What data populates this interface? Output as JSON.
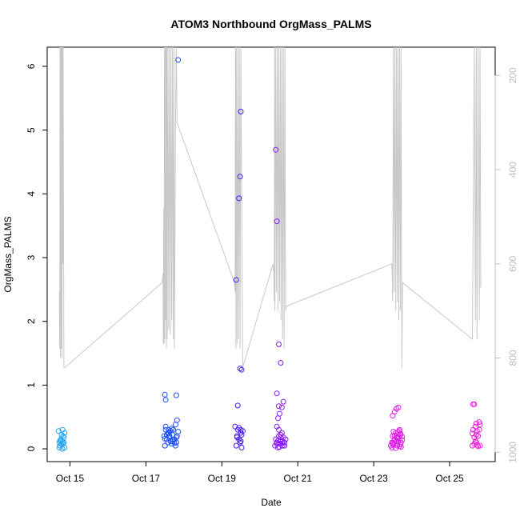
{
  "chart_data": {
    "type": "scatter",
    "title": "ATOM3 Northbound OrgMass_PALMS",
    "xlabel": "Date",
    "ylabel": "OrgMass_PALMS",
    "x_ticks": [
      "Oct 15",
      "Oct 17",
      "Oct 19",
      "Oct 21",
      "Oct 23",
      "Oct 25"
    ],
    "x_tick_day": [
      15,
      17,
      19,
      21,
      23,
      25
    ],
    "xlim_day": [
      14.4,
      26.2
    ],
    "ylim": [
      -0.2,
      6.3
    ],
    "y_ticks": [
      0,
      1,
      2,
      3,
      4,
      5,
      6
    ],
    "y2_ticks": [
      200,
      400,
      600,
      800,
      1000
    ],
    "y2lim": [
      1020,
      140
    ],
    "y2_reversed": true,
    "grid": false,
    "legend": "none",
    "colors": {
      "flight1": "#27a4ef",
      "flight2": "#1e50ff",
      "flight3": "#4a1fe6",
      "flight4": "#8a19ff",
      "flight5": "#e11ee6",
      "flight6": "#ea1fd9",
      "pressure": "#c8c8c8"
    },
    "series": [
      {
        "color_key": "flight1",
        "x": [
          14.7,
          14.72,
          14.74,
          14.76,
          14.78,
          14.8,
          14.82,
          14.84,
          14.86,
          14.72,
          14.76,
          14.8,
          14.84,
          14.78,
          14.82,
          14.74,
          14.86,
          14.8
        ],
        "y": [
          0.28,
          0.1,
          0.05,
          0.12,
          0.22,
          0.3,
          0.08,
          0.18,
          0.25,
          0.02,
          0.15,
          0.0,
          0.1,
          0.07,
          0.2,
          0.13,
          0.02,
          0.11
        ]
      },
      {
        "color_key": "flight2",
        "x": [
          17.48,
          17.5,
          17.52,
          17.55,
          17.58,
          17.6,
          17.62,
          17.65,
          17.68,
          17.7,
          17.72,
          17.75,
          17.78,
          17.8,
          17.82,
          17.5,
          17.55,
          17.6,
          17.65,
          17.7,
          17.75,
          17.8,
          17.52,
          17.58,
          17.62,
          17.68,
          17.72,
          17.78,
          17.82,
          17.85,
          17.5,
          17.52,
          17.8,
          17.85
        ],
        "y": [
          0.2,
          0.05,
          0.3,
          0.15,
          0.1,
          0.25,
          0.18,
          0.12,
          0.08,
          0.22,
          0.3,
          0.15,
          0.05,
          0.1,
          0.2,
          0.16,
          0.22,
          0.3,
          0.28,
          0.12,
          0.09,
          0.18,
          0.35,
          0.25,
          0.2,
          0.32,
          0.14,
          0.38,
          0.45,
          0.27,
          0.85,
          0.77,
          0.84,
          6.1
        ]
      },
      {
        "color_key": "flight3",
        "x": [
          19.35,
          19.38,
          19.4,
          19.42,
          19.45,
          19.48,
          19.5,
          19.52,
          19.55,
          19.4,
          19.45,
          19.5,
          19.42,
          19.48,
          19.52,
          19.38,
          19.45,
          19.48,
          19.5,
          19.52,
          19.5
        ],
        "y": [
          0.35,
          0.05,
          0.2,
          0.3,
          0.15,
          0.1,
          0.25,
          0.02,
          0.28,
          0.18,
          0.33,
          0.12,
          0.68,
          1.26,
          1.24,
          2.65,
          3.93,
          4.27,
          5.29,
          0.22,
          0.3
        ]
      },
      {
        "color_key": "flight4",
        "x": [
          20.4,
          20.42,
          20.45,
          20.48,
          20.5,
          20.52,
          20.55,
          20.58,
          20.6,
          20.62,
          20.65,
          20.68,
          20.5,
          20.55,
          20.6,
          20.45,
          20.48,
          20.52,
          20.58,
          20.62,
          20.65,
          20.42,
          20.45,
          20.5,
          20.55,
          20.45,
          20.45,
          20.48,
          20.5,
          20.55,
          20.6,
          20.52
        ],
        "y": [
          0.05,
          0.15,
          0.1,
          0.02,
          0.2,
          0.08,
          0.12,
          0.25,
          0.05,
          0.18,
          0.1,
          0.15,
          0.3,
          0.22,
          0.12,
          0.35,
          0.48,
          0.55,
          0.65,
          0.74,
          0.05,
          4.69,
          3.57,
          1.64,
          1.35,
          0.87,
          0.08,
          0.13,
          0.67,
          0.18,
          0.09,
          0.03
        ]
      },
      {
        "color_key": "flight5",
        "x": [
          23.45,
          23.48,
          23.5,
          23.52,
          23.55,
          23.58,
          23.6,
          23.62,
          23.65,
          23.68,
          23.7,
          23.72,
          23.75,
          23.5,
          23.55,
          23.6,
          23.65,
          23.7,
          23.48,
          23.52,
          23.58,
          23.62,
          23.68,
          23.72,
          23.5,
          23.55,
          23.6,
          23.65,
          23.7,
          23.75,
          23.52,
          23.58,
          23.62,
          23.68,
          23.55,
          23.65
        ],
        "y": [
          0.05,
          0.1,
          0.2,
          0.08,
          0.15,
          0.25,
          0.12,
          0.05,
          0.18,
          0.3,
          0.22,
          0.1,
          0.14,
          0.52,
          0.58,
          0.63,
          0.65,
          0.24,
          0.02,
          0.06,
          0.11,
          0.16,
          0.28,
          0.03,
          0.09,
          0.13,
          0.2,
          0.26,
          0.07,
          0.19,
          0.27,
          0.01,
          0.17,
          0.04,
          0.21,
          0.12
        ]
      },
      {
        "color_key": "flight6",
        "x": [
          25.6,
          25.62,
          25.65,
          25.68,
          25.7,
          25.72,
          25.75,
          25.78,
          25.8,
          25.62,
          25.65,
          25.68,
          25.7,
          25.72,
          25.75,
          25.78,
          25.65,
          25.7,
          25.6,
          25.8
        ],
        "y": [
          0.05,
          0.3,
          0.08,
          0.35,
          0.4,
          0.06,
          0.2,
          0.3,
          0.38,
          0.7,
          0.7,
          0.12,
          0.22,
          0.28,
          0.04,
          0.42,
          0.18,
          0.1,
          0.24,
          0.05
        ]
      }
    ],
    "pressure_line": {
      "x": [
        14.72,
        14.73,
        14.74,
        14.75,
        14.76,
        14.77,
        14.78,
        14.79,
        14.8,
        14.81,
        14.82,
        14.84,
        14.87,
        17.43,
        17.45,
        17.46,
        17.47,
        17.48,
        17.49,
        17.5,
        17.51,
        17.52,
        17.53,
        17.54,
        17.55,
        17.56,
        17.58,
        17.6,
        17.62,
        17.64,
        17.66,
        17.68,
        17.7,
        17.72,
        17.74,
        17.75,
        17.78,
        17.8,
        17.82,
        19.33,
        19.35,
        19.36,
        19.37,
        19.38,
        19.4,
        19.42,
        19.44,
        19.46,
        19.48,
        19.5,
        19.55,
        20.35,
        20.37,
        20.38,
        20.39,
        20.4,
        20.42,
        20.44,
        20.46,
        20.48,
        20.5,
        20.52,
        20.54,
        20.56,
        20.58,
        20.6,
        20.62,
        20.64,
        20.66,
        20.68,
        20.7,
        23.48,
        23.5,
        23.52,
        23.54,
        23.56,
        23.58,
        23.6,
        23.62,
        23.64,
        23.66,
        23.68,
        23.7,
        23.72,
        23.74,
        23.76,
        25.6,
        25.65,
        25.68,
        25.7,
        25.72,
        25.75,
        25.78,
        25.8,
        25.82
      ],
      "y": [
        660,
        780,
        140,
        800,
        140,
        780,
        140,
        800,
        140,
        600,
        140,
        820,
        820,
        640,
        620,
        770,
        480,
        770,
        140,
        760,
        140,
        720,
        140,
        780,
        140,
        760,
        140,
        740,
        140,
        750,
        140,
        720,
        140,
        760,
        140,
        780,
        300,
        140,
        300,
        640,
        660,
        140,
        780,
        140,
        770,
        140,
        760,
        140,
        780,
        140,
        820,
        600,
        620,
        680,
        140,
        700,
        140,
        660,
        140,
        700,
        140,
        680,
        140,
        720,
        140,
        760,
        140,
        780,
        140,
        700,
        690,
        600,
        680,
        140,
        660,
        140,
        700,
        140,
        680,
        140,
        720,
        140,
        700,
        140,
        820,
        640,
        760,
        140,
        720,
        140,
        760,
        140,
        720,
        140,
        650
      ]
    }
  }
}
